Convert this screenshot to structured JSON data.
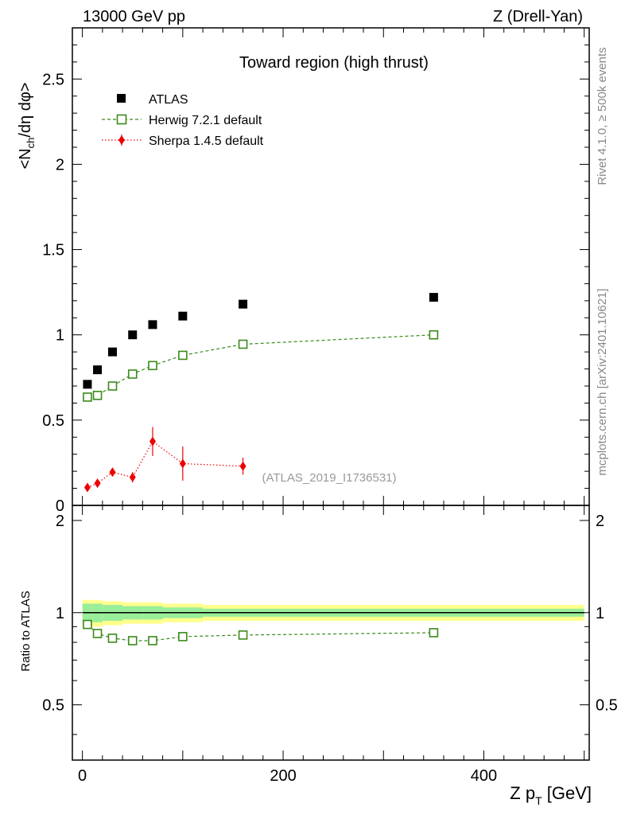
{
  "header": {
    "left": "13000 GeV pp",
    "right": "Z (Drell-Yan)"
  },
  "side_text": {
    "rivet": "Rivet 4.1.0, ≥ 500k events",
    "mcplots": "mcplots.cern.ch [arXiv:2401.10621]"
  },
  "chart_data": {
    "type": "scatter",
    "title": "Toward region (high thrust)",
    "analysis_id": "(ATLAS_2019_I1736531)",
    "xlabel": "Z p_T [GeV]",
    "ylabel": "<N_ch/dη dφ>",
    "ratio_ylabel": "Ratio to ATLAS",
    "xlim": [
      -10,
      505
    ],
    "ylim": [
      0,
      2.8
    ],
    "ratio_ylim": [
      0.33,
      2.24
    ],
    "x_ticks": [
      0,
      200,
      400
    ],
    "y_ticks": [
      "0.5",
      "1",
      "1.5",
      "2",
      "2.5"
    ],
    "y_ticks_partial": "0",
    "ratio_y_ticks": [
      "0.5",
      "1",
      "2"
    ],
    "legend": [
      "ATLAS",
      "Herwig 7.2.1 default",
      "Sherpa 1.4.5 default"
    ],
    "series": [
      {
        "name": "ATLAS",
        "x": [
          5,
          15,
          30,
          50,
          70,
          100,
          160,
          350
        ],
        "y": [
          0.71,
          0.795,
          0.9,
          1.0,
          1.06,
          1.11,
          1.18,
          1.22
        ],
        "color": "#000000"
      },
      {
        "name": "Herwig 7.2.1 default",
        "x": [
          5,
          15,
          30,
          50,
          70,
          100,
          160,
          350
        ],
        "y": [
          0.635,
          0.645,
          0.7,
          0.77,
          0.82,
          0.88,
          0.945,
          1.0
        ],
        "color": "#3a8a1a"
      },
      {
        "name": "Sherpa 1.4.5 default",
        "x": [
          5,
          15,
          30,
          50,
          70,
          100,
          160
        ],
        "y": [
          0.105,
          0.13,
          0.195,
          0.165,
          0.375,
          0.245,
          0.23
        ],
        "yerr": [
          0.01,
          0.015,
          0.025,
          0.03,
          0.085,
          0.1,
          0.05
        ],
        "color": "#ee0000"
      }
    ],
    "ratio": {
      "x": [
        5,
        15,
        30,
        50,
        70,
        100,
        160,
        350
      ],
      "y": [
        0.915,
        0.855,
        0.825,
        0.81,
        0.81,
        0.835,
        0.845,
        0.86
      ],
      "band_bins": [
        {
          "x0": 0,
          "x1": 10,
          "inner": 0.07,
          "outer": 0.1
        },
        {
          "x0": 10,
          "x1": 20,
          "inner": 0.07,
          "outer": 0.1
        },
        {
          "x0": 20,
          "x1": 40,
          "inner": 0.06,
          "outer": 0.09
        },
        {
          "x0": 40,
          "x1": 60,
          "inner": 0.05,
          "outer": 0.08
        },
        {
          "x0": 60,
          "x1": 80,
          "inner": 0.05,
          "outer": 0.08
        },
        {
          "x0": 80,
          "x1": 120,
          "inner": 0.04,
          "outer": 0.07
        },
        {
          "x0": 120,
          "x1": 200,
          "inner": 0.03,
          "outer": 0.06
        },
        {
          "x0": 200,
          "x1": 500,
          "inner": 0.03,
          "outer": 0.06
        }
      ]
    }
  }
}
